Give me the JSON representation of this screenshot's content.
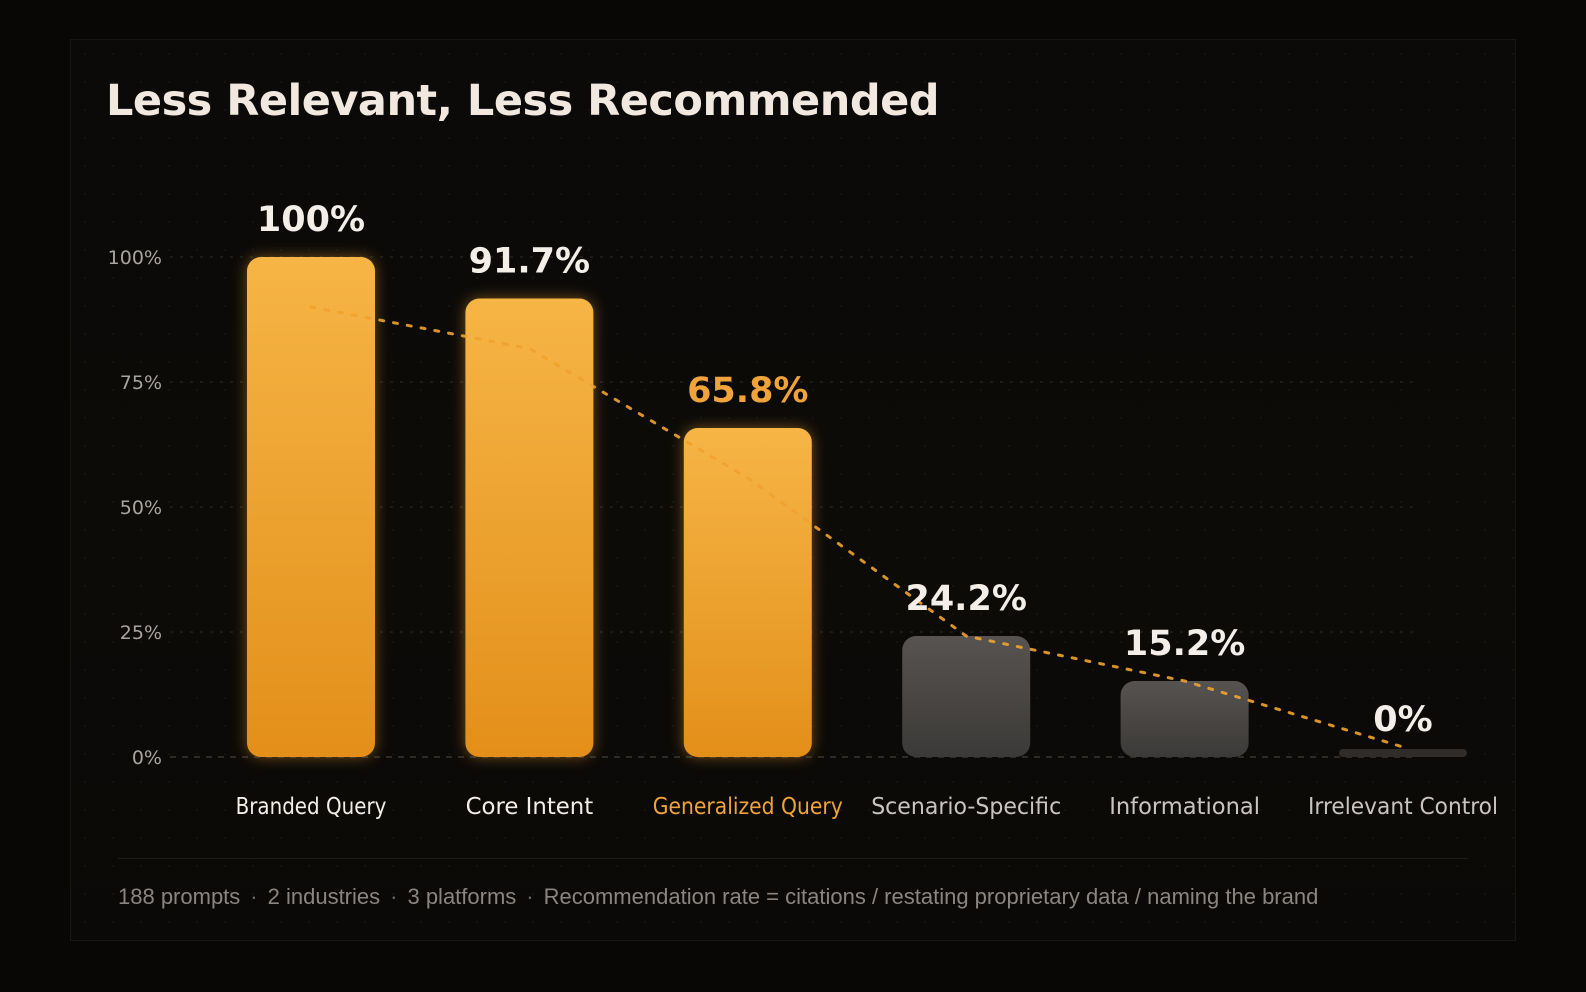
{
  "title": "Less Relevant, Less Recommended",
  "chart_data": {
    "type": "bar",
    "title": "Less Relevant, Less Recommended",
    "categories": [
      "Branded Query",
      "Core Intent",
      "Generalized Query",
      "Scenario-Specific",
      "Informational",
      "Irrelevant Control"
    ],
    "values": [
      100,
      91.7,
      65.8,
      24.2,
      15.2,
      0
    ],
    "value_labels": [
      "100%",
      "91.7%",
      "65.8%",
      "24.2%",
      "15.2%",
      "0%"
    ],
    "ylim": [
      0,
      100
    ],
    "yticks": [
      0,
      25,
      50,
      75,
      100
    ],
    "ytick_labels": [
      "0%",
      "25%",
      "50%",
      "75%",
      "100%"
    ],
    "xlabel": "",
    "ylabel": "",
    "grid": true,
    "trend_line": "dashed",
    "highlight_category": "Generalized Query",
    "colors": {
      "bar_highlight": "#f0a22e",
      "bar_muted": "#4a4745",
      "trend_line": "#f0a22e",
      "highlight_text": "#f0a33a",
      "label_text": "#f3eee8",
      "muted_text": "#c8c4c0",
      "tick_text": "#a8a4a0"
    }
  },
  "footer": {
    "items": [
      "188 prompts",
      "2 industries",
      "3 platforms",
      "Recommendation rate = citations / restating proprietary data / naming the brand"
    ],
    "separator": "·"
  }
}
